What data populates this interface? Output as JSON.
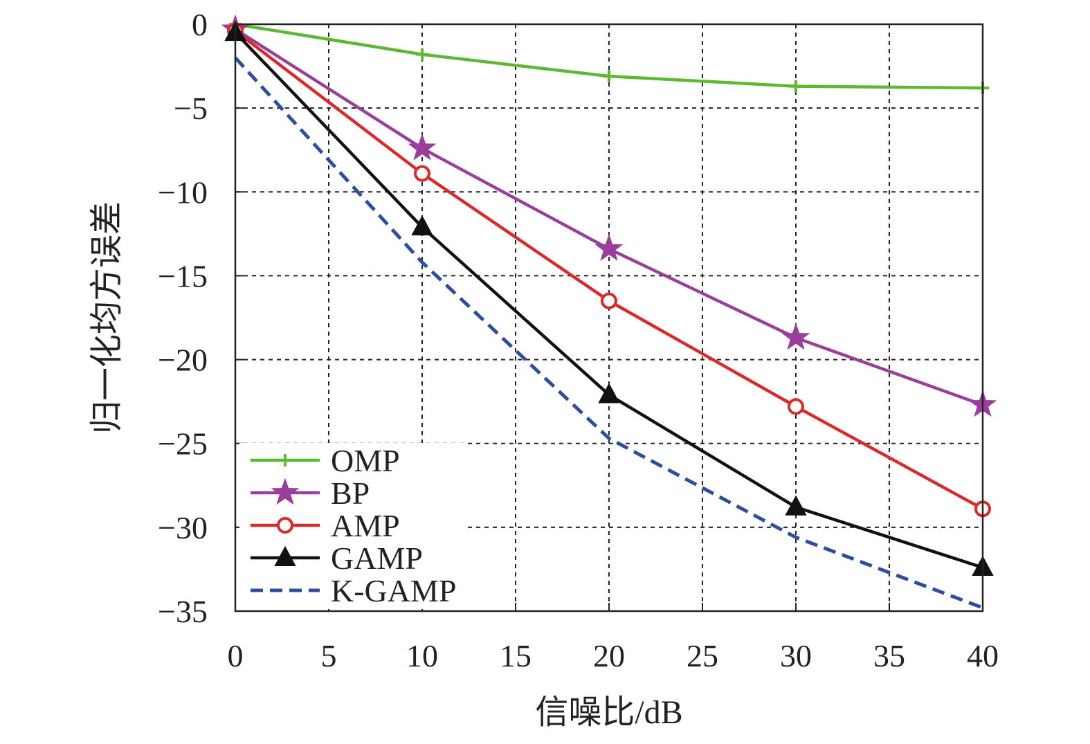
{
  "chart_data": {
    "type": "line",
    "xlabel": "信噪比/dB",
    "ylabel": "归一化均方误差",
    "xlim": [
      0,
      40
    ],
    "ylim": [
      -35,
      0
    ],
    "xticks": [
      0,
      5,
      10,
      15,
      20,
      25,
      30,
      35,
      40
    ],
    "yticks": [
      0,
      -5,
      -10,
      -15,
      -20,
      -25,
      -30,
      -35
    ],
    "xtick_labels": [
      "0",
      "5",
      "10",
      "15",
      "20",
      "25",
      "30",
      "35",
      "40"
    ],
    "ytick_labels": [
      "0",
      "−5",
      "−10",
      "−15",
      "−20",
      "−25",
      "−30",
      "−35"
    ],
    "grid": true,
    "legend_position": "bottom-left",
    "x": [
      0,
      10,
      20,
      30,
      40
    ],
    "series": [
      {
        "name": "OMP",
        "values": [
          0,
          -1.8,
          -3.1,
          -3.7,
          -3.8
        ],
        "color": "#5db832",
        "marker": "plus",
        "dash": "solid"
      },
      {
        "name": "BP",
        "values": [
          -0.3,
          -7.4,
          -13.4,
          -18.7,
          -22.7
        ],
        "color": "#9a3e9c",
        "marker": "star",
        "dash": "solid"
      },
      {
        "name": "AMP",
        "values": [
          -0.4,
          -8.9,
          -16.5,
          -22.8,
          -28.9
        ],
        "color": "#d92a2a",
        "marker": "circle",
        "dash": "solid"
      },
      {
        "name": "GAMP",
        "values": [
          -0.5,
          -12.1,
          -22.1,
          -28.8,
          -32.4
        ],
        "color": "#111111",
        "marker": "triangle",
        "dash": "solid"
      },
      {
        "name": "K-GAMP",
        "values": [
          -2.0,
          -14.2,
          -24.7,
          -30.6,
          -34.8
        ],
        "color": "#2d4ea0",
        "marker": "none",
        "dash": "dashed"
      }
    ]
  }
}
